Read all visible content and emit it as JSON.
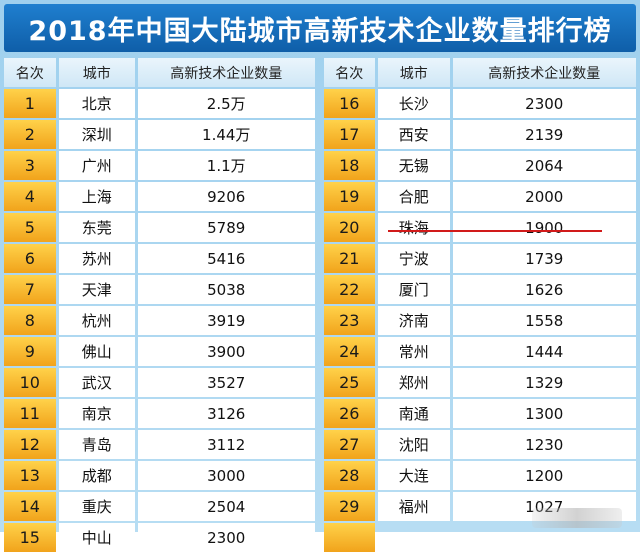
{
  "title": "2018年中国大陆城市高新技术企业数量排行榜",
  "headers": {
    "rank": "名次",
    "city": "城市",
    "count": "高新技术企业数量"
  },
  "colors": {
    "title_bg": "#1f7fcf",
    "rank_bg": "#f1a31b",
    "highlight_line": "#d11a1a",
    "page_bg": "#a9d6f0"
  },
  "left": [
    {
      "rank": "1",
      "city": "北京",
      "count": "2.5万"
    },
    {
      "rank": "2",
      "city": "深圳",
      "count": "1.44万"
    },
    {
      "rank": "3",
      "city": "广州",
      "count": "1.1万"
    },
    {
      "rank": "4",
      "city": "上海",
      "count": "9206"
    },
    {
      "rank": "5",
      "city": "东莞",
      "count": "5789"
    },
    {
      "rank": "6",
      "city": "苏州",
      "count": "5416"
    },
    {
      "rank": "7",
      "city": "天津",
      "count": "5038"
    },
    {
      "rank": "8",
      "city": "杭州",
      "count": "3919"
    },
    {
      "rank": "9",
      "city": "佛山",
      "count": "3900"
    },
    {
      "rank": "10",
      "city": "武汉",
      "count": "3527"
    },
    {
      "rank": "11",
      "city": "南京",
      "count": "3126"
    },
    {
      "rank": "12",
      "city": "青岛",
      "count": "3112"
    },
    {
      "rank": "13",
      "city": "成都",
      "count": "3000"
    },
    {
      "rank": "14",
      "city": "重庆",
      "count": "2504"
    },
    {
      "rank": "15",
      "city": "中山",
      "count": "2300"
    }
  ],
  "right": [
    {
      "rank": "16",
      "city": "长沙",
      "count": "2300"
    },
    {
      "rank": "17",
      "city": "西安",
      "count": "2139"
    },
    {
      "rank": "18",
      "city": "无锡",
      "count": "2064"
    },
    {
      "rank": "19",
      "city": "合肥",
      "count": "2000"
    },
    {
      "rank": "20",
      "city": "珠海",
      "count": "1900"
    },
    {
      "rank": "21",
      "city": "宁波",
      "count": "1739"
    },
    {
      "rank": "22",
      "city": "厦门",
      "count": "1626"
    },
    {
      "rank": "23",
      "city": "济南",
      "count": "1558"
    },
    {
      "rank": "24",
      "city": "常州",
      "count": "1444"
    },
    {
      "rank": "25",
      "city": "郑州",
      "count": "1329"
    },
    {
      "rank": "26",
      "city": "南通",
      "count": "1300"
    },
    {
      "rank": "27",
      "city": "沈阳",
      "count": "1230"
    },
    {
      "rank": "28",
      "city": "大连",
      "count": "1200"
    },
    {
      "rank": "29",
      "city": "福州",
      "count": "1027"
    }
  ]
}
